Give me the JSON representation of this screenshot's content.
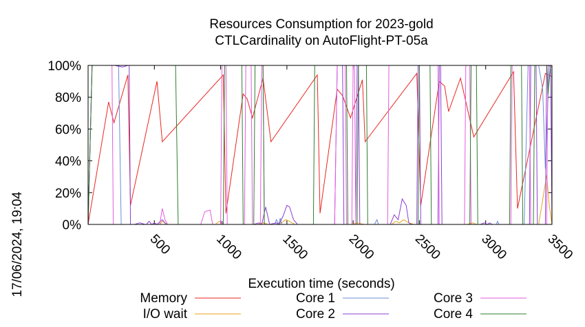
{
  "chart_data": {
    "type": "line",
    "title": [
      "Resources Consumption for 2023-gold",
      "CTLCardinality on AutoFlight-PT-05a"
    ],
    "xlabel": "Execution time (seconds)",
    "ylabel": "",
    "side_label": "17/06/2024, 19:04",
    "xlim": [
      0,
      3500
    ],
    "ylim": [
      0,
      100
    ],
    "x_ticks": [
      500,
      1000,
      1500,
      2000,
      2500,
      3000,
      3500
    ],
    "y_ticks": [
      {
        "value": 0,
        "label": "0%"
      },
      {
        "value": 20,
        "label": "20%"
      },
      {
        "value": 40,
        "label": "40%"
      },
      {
        "value": 60,
        "label": "60%"
      },
      {
        "value": 80,
        "label": "80%"
      },
      {
        "value": 100,
        "label": "100%"
      }
    ],
    "legend_placement": "below",
    "series": [
      {
        "name": "Memory",
        "color": "#e8261e",
        "points": [
          [
            0,
            0
          ],
          [
            155,
            77
          ],
          [
            195,
            64
          ],
          [
            300,
            94
          ],
          [
            320,
            12
          ],
          [
            520,
            90
          ],
          [
            560,
            52
          ],
          [
            1020,
            94
          ],
          [
            1040,
            7
          ],
          [
            1170,
            82
          ],
          [
            1200,
            79
          ],
          [
            1240,
            67
          ],
          [
            1320,
            92
          ],
          [
            1380,
            52
          ],
          [
            1730,
            94
          ],
          [
            1750,
            7
          ],
          [
            1880,
            85
          ],
          [
            1920,
            81
          ],
          [
            1980,
            67
          ],
          [
            2070,
            91
          ],
          [
            2090,
            52
          ],
          [
            2480,
            95
          ],
          [
            2510,
            12
          ],
          [
            2650,
            90
          ],
          [
            2690,
            87
          ],
          [
            2720,
            71
          ],
          [
            2810,
            92
          ],
          [
            2910,
            55
          ],
          [
            3210,
            96
          ],
          [
            3240,
            10
          ],
          [
            3450,
            95
          ],
          [
            3500,
            93
          ]
        ]
      },
      {
        "name": "I/O wait",
        "color": "#e8a317",
        "points": [
          [
            0,
            0
          ],
          [
            540,
            0
          ],
          [
            560,
            2
          ],
          [
            580,
            1
          ],
          [
            600,
            0
          ],
          [
            960,
            0
          ],
          [
            990,
            2
          ],
          [
            1020,
            0
          ],
          [
            1280,
            0
          ],
          [
            1320,
            1
          ],
          [
            1360,
            0
          ],
          [
            1420,
            0
          ],
          [
            1460,
            1
          ],
          [
            1490,
            3
          ],
          [
            1520,
            2
          ],
          [
            1560,
            0
          ],
          [
            1990,
            0
          ],
          [
            2030,
            1
          ],
          [
            2080,
            0
          ],
          [
            2290,
            0
          ],
          [
            2320,
            2
          ],
          [
            2350,
            1
          ],
          [
            2380,
            3
          ],
          [
            2420,
            1
          ],
          [
            2460,
            0
          ],
          [
            2860,
            0
          ],
          [
            2900,
            1
          ],
          [
            2930,
            0
          ],
          [
            3400,
            0
          ],
          [
            3460,
            31
          ],
          [
            3480,
            12
          ],
          [
            3500,
            0
          ]
        ]
      },
      {
        "name": "Core 1",
        "color": "#6b8bd6",
        "points": [
          [
            0,
            0
          ],
          [
            30,
            100
          ],
          [
            230,
            100
          ],
          [
            250,
            0
          ],
          [
            1410,
            0
          ],
          [
            1420,
            3
          ],
          [
            1440,
            0
          ],
          [
            1450,
            4
          ],
          [
            1460,
            0
          ],
          [
            2160,
            0
          ],
          [
            2180,
            3
          ],
          [
            2190,
            0
          ],
          [
            3080,
            0
          ],
          [
            3090,
            2
          ],
          [
            3100,
            0
          ],
          [
            3290,
            0
          ],
          [
            3320,
            100
          ],
          [
            3400,
            100
          ],
          [
            3430,
            85
          ],
          [
            3450,
            35
          ],
          [
            3480,
            100
          ],
          [
            3500,
            100
          ]
        ]
      },
      {
        "name": "Core 2",
        "color": "#8a3fd1",
        "points": [
          [
            0,
            0
          ],
          [
            30,
            100
          ],
          [
            200,
            100
          ],
          [
            260,
            99
          ],
          [
            300,
            100
          ],
          [
            310,
            100
          ],
          [
            320,
            0
          ],
          [
            350,
            0
          ],
          [
            390,
            1
          ],
          [
            430,
            0
          ],
          [
            440,
            0
          ],
          [
            460,
            2
          ],
          [
            480,
            0
          ],
          [
            500,
            1
          ],
          [
            520,
            0
          ],
          [
            560,
            3
          ],
          [
            590,
            0
          ],
          [
            1000,
            0
          ],
          [
            1010,
            2
          ],
          [
            1020,
            0
          ],
          [
            1250,
            0
          ],
          [
            1290,
            1
          ],
          [
            1310,
            0
          ],
          [
            1340,
            11
          ],
          [
            1370,
            0
          ],
          [
            1420,
            1
          ],
          [
            1440,
            0
          ],
          [
            1470,
            5
          ],
          [
            1500,
            12
          ],
          [
            1520,
            11
          ],
          [
            1550,
            3
          ],
          [
            1580,
            0
          ],
          [
            1860,
            0
          ],
          [
            1880,
            100
          ],
          [
            1920,
            100
          ],
          [
            1930,
            0
          ],
          [
            2020,
            0
          ],
          [
            2030,
            100
          ],
          [
            2040,
            100
          ],
          [
            2050,
            0
          ],
          [
            2280,
            0
          ],
          [
            2310,
            6
          ],
          [
            2340,
            3
          ],
          [
            2370,
            16
          ],
          [
            2400,
            12
          ],
          [
            2420,
            1
          ],
          [
            2440,
            0
          ],
          [
            2480,
            0
          ],
          [
            2490,
            100
          ],
          [
            2500,
            100
          ],
          [
            2510,
            0
          ],
          [
            2640,
            0
          ],
          [
            2650,
            100
          ],
          [
            2660,
            100
          ],
          [
            2670,
            0
          ],
          [
            2960,
            0
          ],
          [
            2990,
            1
          ],
          [
            3010,
            0
          ],
          [
            3030,
            1
          ],
          [
            3050,
            0
          ],
          [
            3330,
            0
          ],
          [
            3340,
            100
          ],
          [
            3380,
            100
          ],
          [
            3390,
            0
          ],
          [
            3450,
            0
          ],
          [
            3460,
            100
          ],
          [
            3490,
            100
          ],
          [
            3500,
            0
          ]
        ]
      },
      {
        "name": "Core 3",
        "color": "#e35ae0",
        "points": [
          [
            0,
            0
          ],
          [
            30,
            100
          ],
          [
            170,
            100
          ],
          [
            180,
            100
          ],
          [
            190,
            0
          ],
          [
            500,
            0
          ],
          [
            540,
            0
          ],
          [
            560,
            10
          ],
          [
            580,
            3
          ],
          [
            600,
            0
          ],
          [
            850,
            0
          ],
          [
            880,
            8
          ],
          [
            920,
            9
          ],
          [
            940,
            0
          ],
          [
            1000,
            0
          ],
          [
            1010,
            100
          ],
          [
            1040,
            100
          ],
          [
            1050,
            0
          ],
          [
            1180,
            0
          ],
          [
            1190,
            100
          ],
          [
            1230,
            100
          ],
          [
            1240,
            0
          ],
          [
            1300,
            0
          ],
          [
            1310,
            100
          ],
          [
            1320,
            100
          ],
          [
            1330,
            0
          ],
          [
            1860,
            0
          ],
          [
            1880,
            100
          ],
          [
            1940,
            100
          ],
          [
            1950,
            0
          ],
          [
            1990,
            0
          ],
          [
            2000,
            100
          ],
          [
            2010,
            100
          ],
          [
            2020,
            0
          ],
          [
            2260,
            0
          ],
          [
            2270,
            100
          ],
          [
            2640,
            100
          ],
          [
            2650,
            0
          ],
          [
            2840,
            0
          ],
          [
            2850,
            100
          ],
          [
            2880,
            100
          ],
          [
            2890,
            0
          ],
          [
            3190,
            0
          ],
          [
            3200,
            100
          ],
          [
            3330,
            100
          ],
          [
            3340,
            0
          ],
          [
            3460,
            0
          ],
          [
            3470,
            100
          ],
          [
            3500,
            99
          ]
        ]
      },
      {
        "name": "Core 4",
        "color": "#2e7d2e",
        "points": [
          [
            0,
            0
          ],
          [
            30,
            100
          ],
          [
            660,
            100
          ],
          [
            680,
            0
          ],
          [
            1020,
            0
          ],
          [
            1030,
            100
          ],
          [
            1160,
            100
          ],
          [
            1170,
            0
          ],
          [
            1250,
            0
          ],
          [
            1260,
            100
          ],
          [
            1320,
            100
          ],
          [
            1330,
            0
          ],
          [
            1700,
            0
          ],
          [
            1710,
            100
          ],
          [
            1950,
            100
          ],
          [
            1960,
            0
          ],
          [
            2030,
            0
          ],
          [
            2040,
            100
          ],
          [
            2100,
            100
          ],
          [
            2110,
            0
          ],
          [
            2490,
            0
          ],
          [
            2500,
            100
          ],
          [
            2580,
            100
          ],
          [
            2590,
            0
          ],
          [
            2880,
            0
          ],
          [
            2890,
            100
          ],
          [
            2930,
            100
          ],
          [
            2940,
            0
          ],
          [
            3180,
            0
          ],
          [
            3190,
            100
          ],
          [
            3270,
            100
          ],
          [
            3280,
            0
          ],
          [
            3360,
            0
          ],
          [
            3370,
            100
          ],
          [
            3460,
            100
          ],
          [
            3470,
            82
          ],
          [
            3490,
            100
          ],
          [
            3500,
            100
          ]
        ]
      }
    ]
  }
}
